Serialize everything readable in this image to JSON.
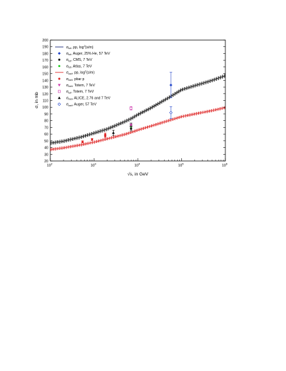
{
  "chart_data": {
    "type": "line",
    "xlabel": "√s, in GeV",
    "ylabel": "σ, in mb",
    "xscale": "log",
    "xlim": [
      100,
      1000000
    ],
    "ylim": [
      20,
      200
    ],
    "x_tick_labels": [
      {
        "value": 100,
        "base": "10",
        "exp": "2"
      },
      {
        "value": 1000,
        "base": "10",
        "exp": "3"
      },
      {
        "value": 10000,
        "base": "10",
        "exp": "4"
      },
      {
        "value": 100000,
        "base": "10",
        "exp": "5"
      },
      {
        "value": 1000000,
        "base": "10",
        "exp": "6"
      }
    ],
    "y_ticks": [
      20,
      30,
      40,
      50,
      60,
      70,
      80,
      90,
      100,
      110,
      120,
      130,
      140,
      150,
      160,
      170,
      180,
      190,
      200
    ],
    "grid": false,
    "legend_position": "top-left",
    "legend": [
      {
        "sym": "line",
        "color": "#1a2a7a",
        "pre": "σ",
        "sub": "tot",
        "text": ", pp, log",
        "sup": "2",
        "post": "(s/m)"
      },
      {
        "sym": "diamond",
        "color": "#1a3ec8",
        "pre": "σ",
        "sub": "tot",
        "text": ", Auger, 25% He, 57 TeV"
      },
      {
        "sym": "dot",
        "color": "#000000",
        "pre": "σ",
        "sub": "tot",
        "text": ", CMS,  7 TeV"
      },
      {
        "sym": "dot",
        "color": "#22cc22",
        "pre": "σ",
        "sub": "tot",
        "text": ", Atlas,  7 TeV"
      },
      {
        "sym": "line",
        "color": "#e03030",
        "pre": "σ",
        "sub": "inel",
        "text": ", pp, log",
        "sup": "2",
        "post": "(s/m)"
      },
      {
        "sym": "dot",
        "color": "#dd2222",
        "pre": "σ",
        "sub": "inel",
        "text": ", pbar p"
      },
      {
        "sym": "tri-down",
        "color": "#cc33aa",
        "pre": "σ",
        "sub": "inel",
        "text": ", Totem, 7 TeV"
      },
      {
        "sym": "square-open",
        "color": "#cc33aa",
        "pre": "σ",
        "sub": "tot",
        "text": ", Totem, 7 TeV"
      },
      {
        "sym": "tri-up",
        "color": "#000000",
        "pre": "σ",
        "sub": "inel",
        "text": ", ALICE, 2.76 and 7 TeV"
      },
      {
        "sym": "diamond-open",
        "color": "#1a3ec8",
        "pre": "σ",
        "sub": "inel",
        "text": ", Auger, 57 TeV"
      }
    ],
    "curves": [
      {
        "name": "tot",
        "color": "#000000",
        "x": [
          100,
          200,
          500,
          1000,
          2000,
          5000,
          7000,
          10000,
          20000,
          50000,
          100000,
          200000,
          500000,
          1000000
        ],
        "y": [
          46.5,
          49.5,
          55.5,
          61.5,
          67.5,
          78.5,
          83,
          89,
          99,
          114,
          126,
          132,
          140,
          147
        ],
        "band": 2.2
      },
      {
        "name": "inel",
        "color": "#e03030",
        "x": [
          100,
          200,
          500,
          1000,
          2000,
          5000,
          7000,
          10000,
          20000,
          50000,
          100000,
          200000,
          500000,
          1000000
        ],
        "y": [
          37,
          39.5,
          44,
          48,
          53,
          59.5,
          62.5,
          66,
          72,
          80,
          86,
          90,
          95,
          99.5
        ],
        "band": 1.8
      }
    ],
    "points": [
      {
        "x": 546,
        "y": 48.5,
        "err": 1.5,
        "color": "#dd2222",
        "marker": "dot"
      },
      {
        "x": 900,
        "y": 52,
        "err": 1.5,
        "color": "#dd2222",
        "marker": "dot"
      },
      {
        "x": 1800,
        "y": 57,
        "err": 2,
        "color": "#dd2222",
        "marker": "dot"
      },
      {
        "x": 1800,
        "y": 59.5,
        "err": 2,
        "color": "#dd2222",
        "marker": "dot"
      },
      {
        "x": 2760,
        "y": 62,
        "err": 4,
        "color": "#000000",
        "marker": "tri-up"
      },
      {
        "x": 7000,
        "y": 73.5,
        "err": 3,
        "color": "#000000",
        "marker": "tri-up"
      },
      {
        "x": 7000,
        "y": 71,
        "err": 3,
        "color": "#22cc22",
        "marker": "dot"
      },
      {
        "x": 7000,
        "y": 68,
        "err": 3,
        "color": "#000000",
        "marker": "dot"
      },
      {
        "x": 7000,
        "y": 73.5,
        "err": 1.5,
        "color": "#cc33aa",
        "marker": "tri-down"
      },
      {
        "x": 7000,
        "y": 98.5,
        "err": 2.5,
        "color": "#cc33aa",
        "marker": "square-open"
      },
      {
        "x": 57000,
        "y": 133,
        "err": 19,
        "color": "#1a3ec8",
        "marker": "diamond"
      },
      {
        "x": 57000,
        "y": 92,
        "err": 9,
        "color": "#1a3ec8",
        "marker": "diamond-open"
      }
    ]
  }
}
